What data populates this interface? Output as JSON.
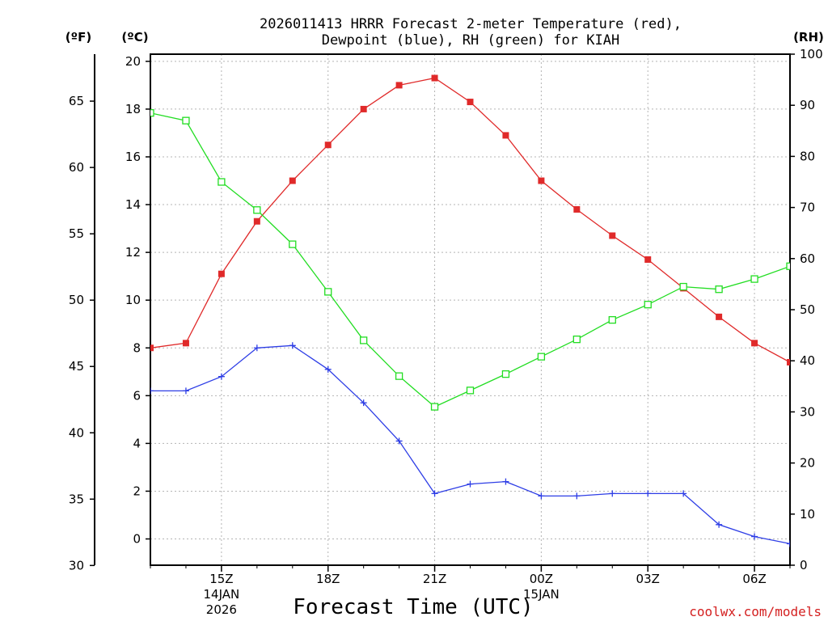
{
  "chart_data": {
    "type": "line",
    "title_lines": [
      "2026011413 HRRR Forecast 2-meter Temperature (red),",
      "Dewpoint (blue), RH (green) for KIAH"
    ],
    "xlabel": "Forecast Time (UTC)",
    "credit": "coolwx.com/models",
    "units": {
      "fahrenheit": "(ºF)",
      "celsius": "(ºC)",
      "rh": "(RH)"
    },
    "x_hours": [
      13,
      14,
      15,
      16,
      17,
      18,
      19,
      20,
      21,
      22,
      23,
      24,
      25,
      26,
      27,
      28,
      29,
      30,
      31
    ],
    "x_ticks": [
      {
        "hour": 15,
        "lines": [
          "15Z",
          "14JAN",
          "2026"
        ]
      },
      {
        "hour": 18,
        "lines": [
          "18Z"
        ]
      },
      {
        "hour": 21,
        "lines": [
          "21Z"
        ]
      },
      {
        "hour": 24,
        "lines": [
          "00Z",
          "15JAN"
        ]
      },
      {
        "hour": 27,
        "lines": [
          "03Z"
        ]
      },
      {
        "hour": 30,
        "lines": [
          "06Z"
        ]
      }
    ],
    "celsius_axis": {
      "range": [
        -1.1,
        20.3
      ],
      "ticks": [
        "0",
        "2",
        "4",
        "6",
        "8",
        "10",
        "12",
        "14",
        "16",
        "18",
        "20"
      ]
    },
    "fahrenheit_axis": {
      "ticks": [
        "30",
        "35",
        "40",
        "45",
        "50",
        "55",
        "60",
        "65"
      ]
    },
    "rh_axis": {
      "range": [
        0,
        100
      ],
      "ticks": [
        "0",
        "10",
        "20",
        "30",
        "40",
        "50",
        "60",
        "70",
        "80",
        "90",
        "100"
      ]
    },
    "series": [
      {
        "name": "2-meter Temperature",
        "color": "#e02a2a",
        "axis": "celsius",
        "marker": "filled-square",
        "values": [
          8.0,
          8.2,
          11.1,
          13.3,
          15.0,
          16.5,
          18.0,
          19.0,
          19.3,
          18.3,
          16.9,
          15.0,
          13.8,
          12.7,
          11.7,
          10.5,
          9.3,
          8.2,
          7.4
        ]
      },
      {
        "name": "Dewpoint",
        "color": "#2e3ee6",
        "axis": "celsius",
        "marker": "plus",
        "values": [
          6.2,
          6.2,
          6.8,
          8.0,
          8.1,
          7.1,
          5.7,
          4.1,
          1.9,
          2.3,
          2.4,
          1.8,
          1.8,
          1.9,
          1.9,
          1.9,
          0.6,
          0.1,
          -0.2
        ]
      },
      {
        "name": "Relative Humidity",
        "color": "#22dd22",
        "axis": "rh",
        "marker": "open-square",
        "values": [
          88.5,
          87.0,
          75.0,
          69.5,
          62.8,
          53.5,
          44.0,
          37.0,
          31.0,
          34.2,
          37.4,
          40.8,
          44.2,
          48.0,
          51.0,
          54.5,
          54.0,
          56.0,
          58.5
        ]
      }
    ]
  }
}
